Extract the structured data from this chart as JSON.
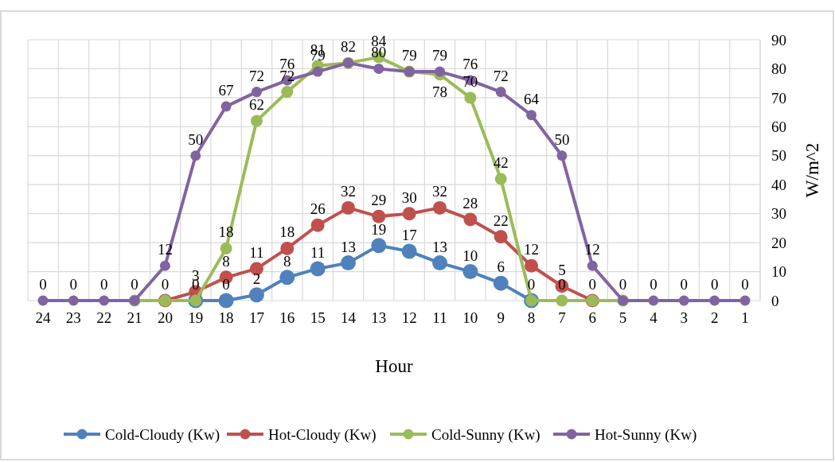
{
  "chart_data": {
    "type": "line",
    "xlabel": "Hour",
    "ylabel": "W/m^2",
    "categories": [
      "24",
      "23",
      "22",
      "21",
      "20",
      "19",
      "18",
      "17",
      "16",
      "15",
      "14",
      "13",
      "12",
      "11",
      "10",
      "9",
      "8",
      "7",
      "6",
      "5",
      "4",
      "3",
      "2",
      "1"
    ],
    "ylim": [
      0,
      90
    ],
    "yticks": [
      0,
      10,
      20,
      30,
      40,
      50,
      60,
      70,
      80,
      90
    ],
    "grid": true,
    "legend": "bottom",
    "marker": "circle",
    "line_style": "solid",
    "series": [
      {
        "name": "Cold-Cloudy (Kw)",
        "color": "#4f81bd",
        "values": [
          null,
          null,
          null,
          null,
          null,
          0,
          0,
          2,
          8,
          11,
          13,
          19,
          17,
          13,
          10,
          6,
          0,
          null,
          null,
          null,
          null,
          null,
          null,
          null
        ],
        "value_labels": [
          null,
          null,
          null,
          null,
          null,
          null,
          "0",
          "2",
          "8",
          "11",
          "13",
          "19",
          "17",
          "13",
          "10",
          "6",
          null,
          null,
          null,
          null,
          null,
          null,
          null,
          null
        ]
      },
      {
        "name": "Hot-Cloudy (Kw)",
        "color": "#c0504d",
        "values": [
          null,
          null,
          null,
          null,
          0,
          3,
          8,
          11,
          18,
          26,
          32,
          29,
          30,
          32,
          28,
          22,
          12,
          5,
          0,
          null,
          null,
          null,
          null,
          null
        ],
        "value_labels": [
          null,
          null,
          null,
          null,
          null,
          "3",
          "8",
          "11",
          "18",
          "26",
          "32",
          "29",
          "30",
          "32",
          "28",
          "22",
          "12",
          "5",
          null,
          null,
          null,
          null,
          null,
          null
        ]
      },
      {
        "name": "Cold-Sunny (Kw)",
        "color": "#9bbb59",
        "values": [
          null,
          null,
          null,
          0,
          0,
          0,
          18,
          62,
          72,
          81,
          82,
          84,
          79,
          78,
          70,
          42,
          0,
          0,
          0,
          0,
          null,
          null,
          null,
          null
        ],
        "value_labels": [
          null,
          null,
          null,
          null,
          "0",
          "0",
          "18",
          "62",
          "72",
          "81",
          null,
          "84",
          null,
          "78",
          "70",
          "42",
          "0",
          "0",
          "0",
          null,
          null,
          null,
          null,
          null
        ]
      },
      {
        "name": "Hot-Sunny (Kw)",
        "color": "#8064a2",
        "values": [
          0,
          0,
          0,
          0,
          12,
          50,
          67,
          72,
          76,
          79,
          82,
          80,
          79,
          79,
          76,
          72,
          64,
          50,
          12,
          0,
          0,
          0,
          0,
          0
        ],
        "value_labels": [
          "0",
          "0",
          "0",
          "0",
          "12",
          "50",
          "67",
          "72",
          "76",
          "79",
          "82",
          "80",
          "79",
          "79",
          "76",
          "72",
          "64",
          "50",
          "12",
          "0",
          "0",
          "0",
          "0",
          "0"
        ]
      }
    ]
  }
}
